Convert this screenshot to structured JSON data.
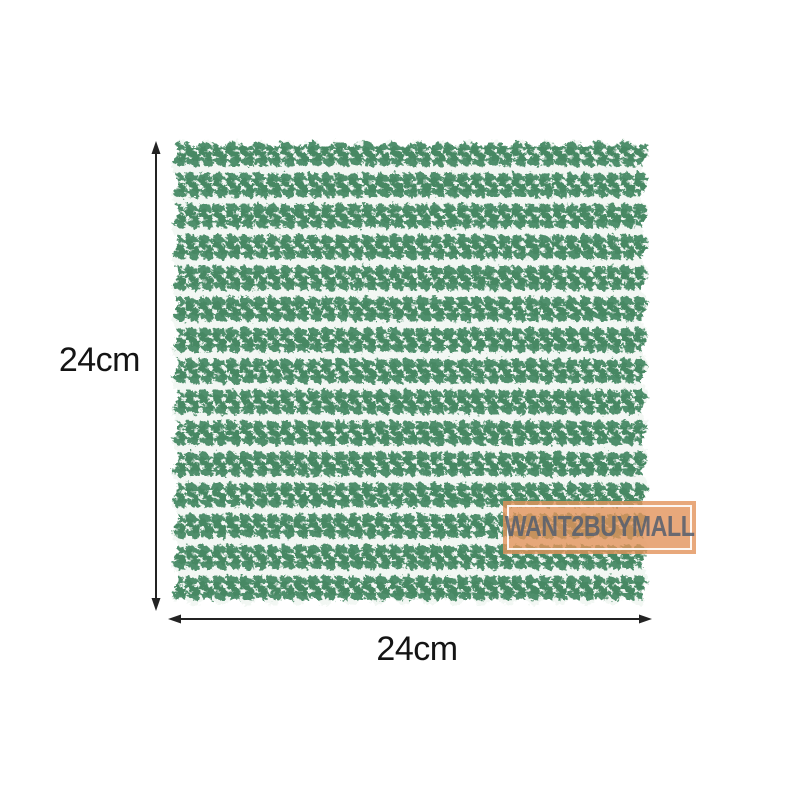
{
  "product": {
    "type": "striped-dishcloth-photo"
  },
  "dimensions": {
    "height_label": "24cm",
    "width_label": "24cm"
  },
  "watermark": {
    "text": "WANT2BUYMALL"
  },
  "colors": {
    "background": "#ffffff",
    "stripe_green": "#4f8f6c",
    "stripe_green_dark": "#3f7f5c",
    "stripe_white": "#f2f7f3",
    "dimension_color": "#232323",
    "label_color": "#141414",
    "watermark_fill": "rgba(226,146,90,0.8)",
    "watermark_border": "rgba(255,255,255,0.9)",
    "watermark_text": "rgba(84,94,110,0.85)"
  }
}
